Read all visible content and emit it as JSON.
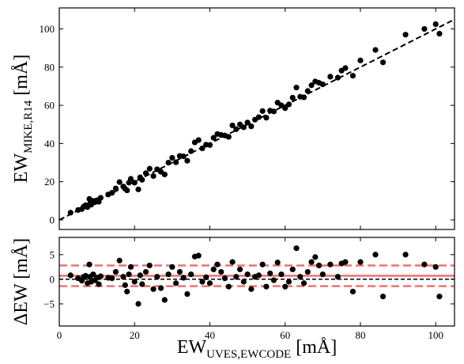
{
  "chart_data": [
    {
      "type": "scatter",
      "color": "#000000",
      "x": [
        3,
        5,
        6,
        6.5,
        7,
        7.5,
        8,
        8.2,
        8.5,
        9,
        9.5,
        10,
        10.5,
        11,
        13,
        14,
        15,
        16,
        17,
        17.5,
        18,
        18.5,
        19,
        20,
        21,
        21.5,
        22,
        23,
        24,
        25,
        26,
        27,
        28,
        29,
        30,
        31,
        32,
        33,
        34,
        35,
        36,
        37,
        38,
        39,
        40,
        41,
        42,
        43,
        44,
        45,
        46,
        47,
        48,
        49,
        50,
        51,
        52,
        53,
        54,
        55,
        56,
        57,
        58,
        59,
        60,
        61,
        62,
        63,
        64,
        65,
        66,
        67,
        68,
        69,
        70,
        72,
        74,
        75,
        76,
        78,
        80,
        84,
        86,
        92,
        97,
        100,
        101
      ],
      "y": [
        3.8,
        5.2,
        5.7,
        7,
        7.7,
        6.7,
        11,
        8.7,
        8,
        10,
        9.3,
        10.3,
        9.5,
        11.6,
        13.3,
        14.2,
        16.5,
        19.8,
        17.5,
        16.3,
        15.5,
        19.5,
        21.5,
        19.5,
        16,
        22.3,
        21,
        24.5,
        26.8,
        23,
        26.5,
        25.2,
        23.8,
        30,
        32.5,
        30.2,
        33.5,
        33.3,
        31,
        36,
        40.6,
        41.8,
        37.5,
        39.4,
        39.2,
        43,
        45,
        44.5,
        44.2,
        43.5,
        49.5,
        47.5,
        50,
        48.5,
        51,
        49,
        52.5,
        53.8,
        57,
        53.5,
        57.2,
        56.8,
        61.4,
        60,
        58.5,
        60.5,
        64,
        69.3,
        64.5,
        64.2,
        67.5,
        70.5,
        72.5,
        71.8,
        71,
        75,
        74.5,
        78.2,
        79.5,
        75.5,
        83.5,
        89,
        82.5,
        97,
        100,
        102.5,
        97.5
      ],
      "xlim": [
        0,
        105
      ],
      "ylim": [
        -5,
        111
      ],
      "xticks": [
        0,
        20,
        40,
        60,
        80,
        100
      ],
      "yticks": [
        0,
        20,
        40,
        60,
        80,
        100
      ],
      "x_tick_labels": false,
      "identity_line": true,
      "ylabel": {
        "main": "EW",
        "sub": "MIKE,R14",
        "unit": "[mÅ]"
      }
    },
    {
      "type": "scatter",
      "color": "#000000",
      "x": [
        3,
        5,
        6,
        6.5,
        7,
        7.5,
        8,
        8.2,
        8.5,
        9,
        9.5,
        10,
        10.5,
        11,
        13,
        14,
        15,
        16,
        17,
        17.5,
        18,
        18.5,
        19,
        20,
        21,
        21.5,
        22,
        23,
        24,
        25,
        26,
        27,
        28,
        29,
        30,
        31,
        32,
        33,
        34,
        35,
        36,
        37,
        38,
        39,
        40,
        41,
        42,
        43,
        44,
        45,
        46,
        47,
        48,
        49,
        50,
        51,
        52,
        53,
        54,
        55,
        56,
        57,
        58,
        59,
        60,
        61,
        62,
        63,
        64,
        65,
        66,
        67,
        68,
        69,
        70,
        72,
        74,
        75,
        76,
        78,
        80,
        84,
        86,
        92,
        97,
        100,
        101
      ],
      "y": [
        0.8,
        0.2,
        -0.3,
        0.5,
        0.7,
        -0.8,
        3,
        0.5,
        -0.5,
        1,
        -0.2,
        0.3,
        -1,
        0.6,
        0.3,
        0.2,
        1.5,
        3.8,
        0.5,
        -1.2,
        -2.5,
        1,
        2.5,
        -0.5,
        -5,
        0.8,
        -1,
        1.5,
        2.8,
        -2,
        0.5,
        -1.8,
        -4.2,
        1,
        2.5,
        -0.8,
        1.5,
        0.3,
        -3,
        1,
        4.6,
        4.8,
        -0.5,
        0.4,
        -0.8,
        2,
        3,
        1.5,
        0.2,
        -1.5,
        3.5,
        0.5,
        2,
        -0.5,
        1,
        -2,
        0.5,
        0.8,
        3,
        -1.5,
        1.2,
        -0.2,
        3.4,
        1,
        -1.5,
        -0.5,
        2,
        6.3,
        0.5,
        -0.8,
        1.5,
        3.5,
        4.5,
        2.8,
        1,
        3,
        0.5,
        3.2,
        3.5,
        -2.5,
        3.5,
        5,
        -3.5,
        5,
        3,
        2.5,
        -3.5
      ],
      "xlim": [
        0,
        105
      ],
      "ylim": [
        -9.5,
        8.5
      ],
      "xticks": [
        0,
        20,
        40,
        60,
        80,
        100
      ],
      "yticks": [
        {
          "value": -5,
          "label": "−5"
        },
        0,
        5
      ],
      "x_tick_labels": true,
      "hlines": [
        {
          "value": 0,
          "color": "#000000",
          "style": "dashed"
        },
        {
          "value": 0.7,
          "color": "#f07070",
          "style": "solid"
        },
        {
          "value": 2.8,
          "color": "#f07070",
          "style": "dashed"
        },
        {
          "value": -1.4,
          "color": "#f07070",
          "style": "dashed"
        }
      ],
      "ylabel": "ΔEW [mÅ]",
      "xlabel": {
        "main": "EW",
        "sub": "UVES,EWCODE",
        "unit": "[mÅ]"
      }
    }
  ]
}
